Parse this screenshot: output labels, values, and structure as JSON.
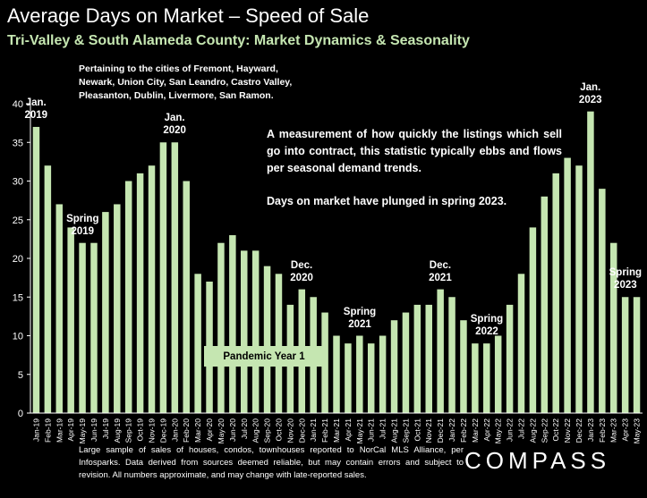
{
  "header": {
    "title": "Average Days on Market – Speed of Sale",
    "subtitle": "Tri-Valley & South Alameda County: Market Dynamics & Seasonality"
  },
  "cities_note": "Pertaining to the cities of Fremont, Hayward, Newark, Union City, San Leandro, Castro Valley, Pleasanton, Dublin, Livermore, San Ramon.",
  "description": {
    "line1": "A measurement of how quickly the listings which sell go into contract, this statistic typically ebbs and flows per seasonal demand trends.",
    "line2": "Days on market have plunged in spring 2023."
  },
  "pandemic_label": "Pandemic Year 1",
  "footnote": "Large sample of sales of houses, condos, townhouses reported to NorCal MLS Alliance, per Infosparks. Data derived from sources deemed reliable, but may contain errors and subject to revision. All numbers approximate, and may change with late-reported sales.",
  "logo": "COMPASS",
  "colors": {
    "bar": "#c5e6b1",
    "background": "#000000",
    "subtitle": "#c5e6b1"
  },
  "chart_data": {
    "type": "bar",
    "categories": [
      "Jan-19",
      "Feb-19",
      "Mar-19",
      "Apr-19",
      "May-19",
      "Jun-19",
      "Jul-19",
      "Aug-19",
      "Sep-19",
      "Oct-19",
      "Nov-19",
      "Dec-19",
      "Jan-20",
      "Feb-20",
      "Mar-20",
      "Apr-20",
      "May-20",
      "Jun-20",
      "Jul-20",
      "Aug-20",
      "Sep-20",
      "Oct-20",
      "Nov-20",
      "Dec-20",
      "Jan-21",
      "Feb-21",
      "Mar-21",
      "Apr-21",
      "May-21",
      "Jun-21",
      "Jul-21",
      "Aug-21",
      "Sep-21",
      "Oct-21",
      "Nov-21",
      "Dec-21",
      "Jan-22",
      "Feb-22",
      "Mar-22",
      "Apr-22",
      "May-22",
      "Jun-22",
      "Jul-22",
      "Aug-22",
      "Sep-22",
      "Oct-22",
      "Nov-22",
      "Dec-22",
      "Jan-23",
      "Feb-23",
      "Mar-23",
      "Apr-23",
      "May-23"
    ],
    "values": [
      37,
      32,
      27,
      24,
      22,
      22,
      26,
      27,
      30,
      31,
      32,
      35,
      35,
      30,
      18,
      17,
      22,
      23,
      21,
      21,
      19,
      18,
      14,
      16,
      15,
      13,
      10,
      9,
      10,
      9,
      10,
      12,
      13,
      14,
      14,
      16,
      15,
      12,
      9,
      9,
      10,
      14,
      18,
      24,
      28,
      31,
      33,
      32,
      39,
      29,
      22,
      15,
      15
    ],
    "ylim": [
      0,
      40
    ],
    "yticks": [
      "0",
      "5",
      "10",
      "15",
      "20",
      "25",
      "30",
      "35",
      "40"
    ],
    "grid": false,
    "annotations": [
      {
        "lines": [
          "Jan.",
          "2019"
        ],
        "index": 0
      },
      {
        "lines": [
          "Spring",
          "2019"
        ],
        "index": 4
      },
      {
        "lines": [
          "Jan.",
          "2020"
        ],
        "index": 12
      },
      {
        "lines": [
          "Dec.",
          "2020"
        ],
        "index": 23
      },
      {
        "lines": [
          "Spring",
          "2021"
        ],
        "index": 28
      },
      {
        "lines": [
          "Dec.",
          "2021"
        ],
        "index": 35
      },
      {
        "lines": [
          "Spring",
          "2022"
        ],
        "index": 39
      },
      {
        "lines": [
          "Jan.",
          "2023"
        ],
        "index": 48
      },
      {
        "lines": [
          "Spring",
          "2023"
        ],
        "index": 51
      }
    ]
  }
}
